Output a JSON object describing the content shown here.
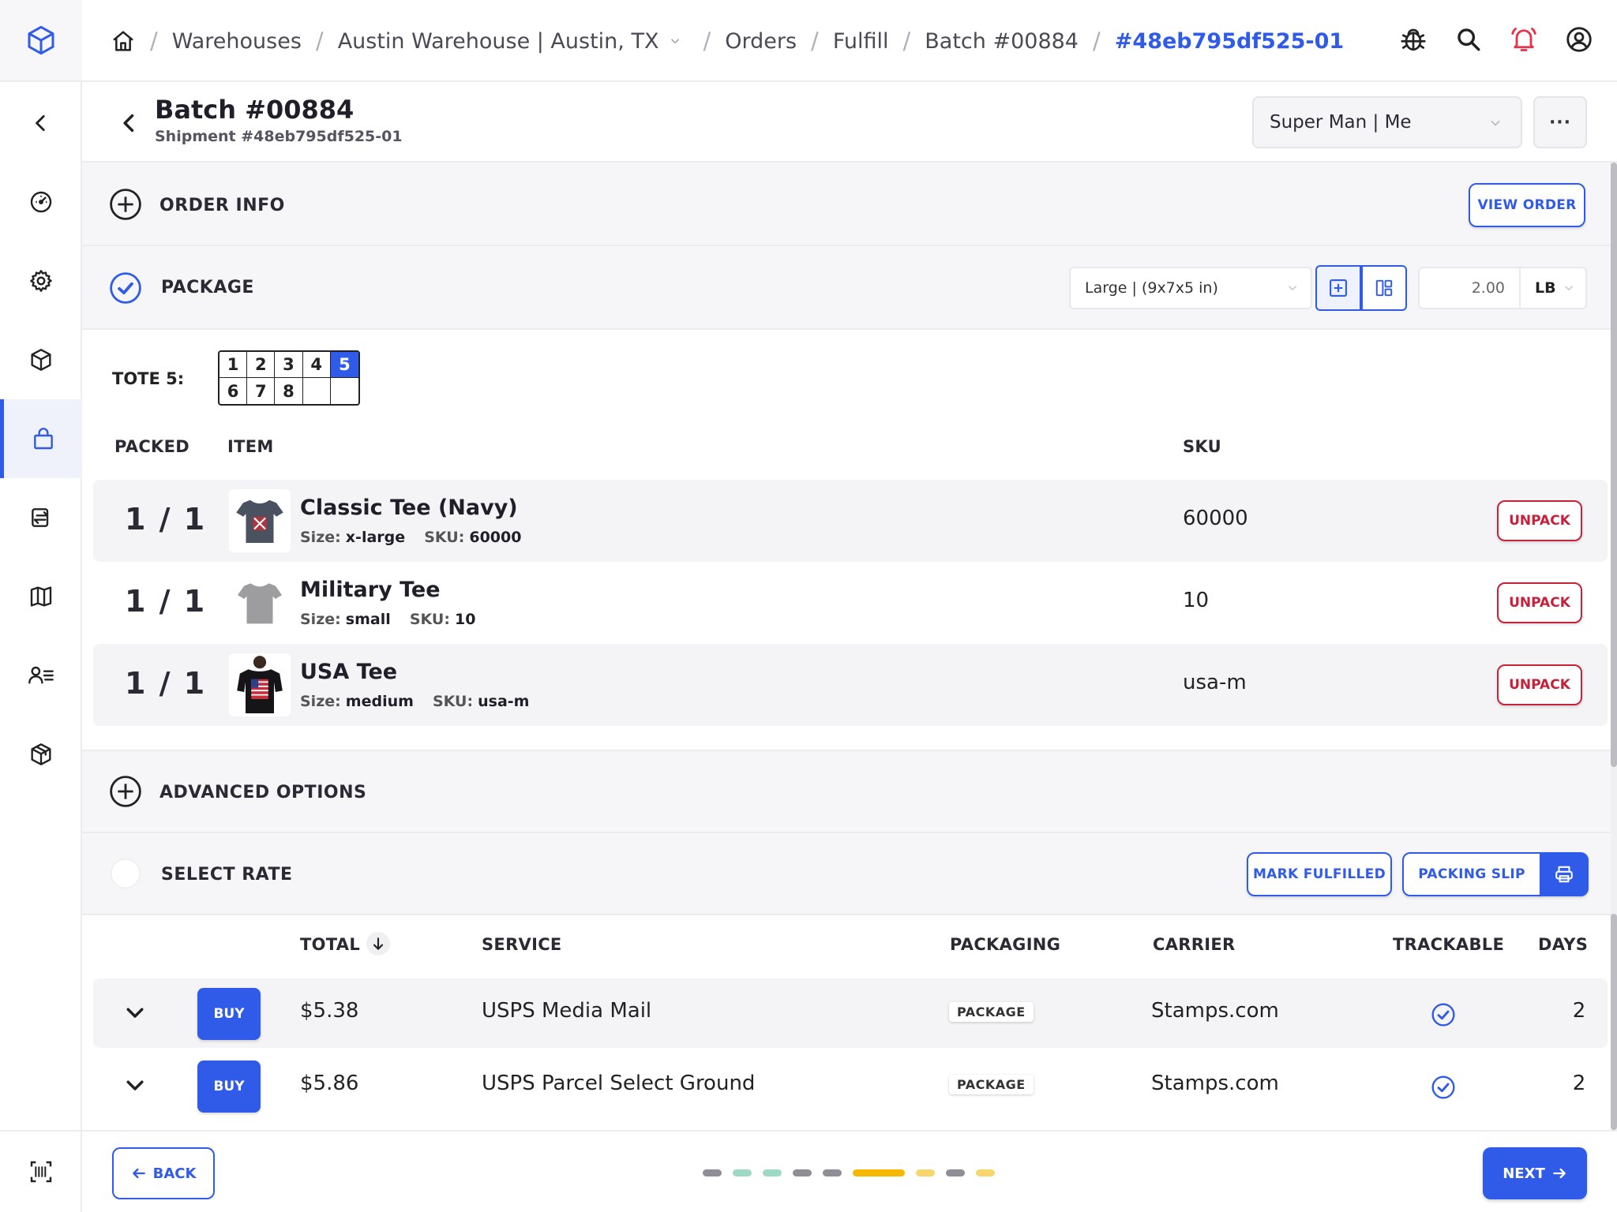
{
  "app": {
    "logo": "cube-logo-icon"
  },
  "breadcrumb": {
    "items": [
      "Warehouses",
      "Austin Warehouse | Austin, TX",
      "Orders",
      "Fulfill",
      "Batch #00884"
    ],
    "current": "#48eb795df525-01"
  },
  "page": {
    "title": "Batch #00884",
    "subtitle": "Shipment #48eb795df525-01",
    "user_select": "Super Man | Me",
    "more_label": "···"
  },
  "order_info": {
    "label": "ORDER INFO",
    "view_button": "VIEW ORDER"
  },
  "package": {
    "label": "PACKAGE",
    "box": "Large | (9x7x5 in)",
    "weight": "2.00",
    "unit": "LB"
  },
  "tote": {
    "label": "TOTE 5:",
    "cells": [
      "1",
      "2",
      "3",
      "4",
      "5",
      "6",
      "7",
      "8",
      "",
      ""
    ],
    "selected": "5"
  },
  "items_table": {
    "headers": {
      "packed": "PACKED",
      "item": "ITEM",
      "sku": "SKU"
    },
    "size_key": "Size:",
    "sku_key": "SKU:",
    "unpack_label": "UNPACK",
    "rows": [
      {
        "packed": "1 / 1",
        "name": "Classic Tee (Navy)",
        "size": "x-large",
        "sku": "60000"
      },
      {
        "packed": "1 / 1",
        "name": "Military Tee",
        "size": "small",
        "sku": "10"
      },
      {
        "packed": "1 / 1",
        "name": "USA Tee",
        "size": "medium",
        "sku": "usa-m"
      }
    ]
  },
  "advanced_options": {
    "label": "ADVANCED OPTIONS"
  },
  "select_rate": {
    "label": "SELECT RATE",
    "mark_fulfilled": "MARK FULFILLED",
    "packing_slip": "PACKING SLIP"
  },
  "rates_table": {
    "headers": {
      "total": "TOTAL",
      "service": "SERVICE",
      "packaging": "PACKAGING",
      "carrier": "CARRIER",
      "trackable": "TRACKABLE",
      "days": "DAYS"
    },
    "buy_label": "BUY",
    "rows": [
      {
        "total": "$5.38",
        "service": "USPS Media Mail",
        "packaging": "PACKAGE",
        "carrier": "Stamps.com",
        "trackable": true,
        "days": "2"
      },
      {
        "total": "$5.86",
        "service": "USPS Parcel Select Ground",
        "packaging": "PACKAGE",
        "carrier": "Stamps.com",
        "trackable": true,
        "days": "2"
      }
    ]
  },
  "footer": {
    "back": "BACK",
    "next": "NEXT",
    "progress": [
      {
        "color": "#8e8e96",
        "active": false
      },
      {
        "color": "#9ed9c6",
        "active": false
      },
      {
        "color": "#9ed9c6",
        "active": false
      },
      {
        "color": "#8e8e96",
        "active": false
      },
      {
        "color": "#8e8e96",
        "active": false
      },
      {
        "color": "#f5b800",
        "active": true
      },
      {
        "color": "#f8d66e",
        "active": false
      },
      {
        "color": "#8e8e96",
        "active": false
      },
      {
        "color": "#f8d66e",
        "active": false
      }
    ]
  },
  "colors": {
    "accent": "#2f5be8",
    "danger": "#c8203a",
    "alert": "#e8314a"
  }
}
